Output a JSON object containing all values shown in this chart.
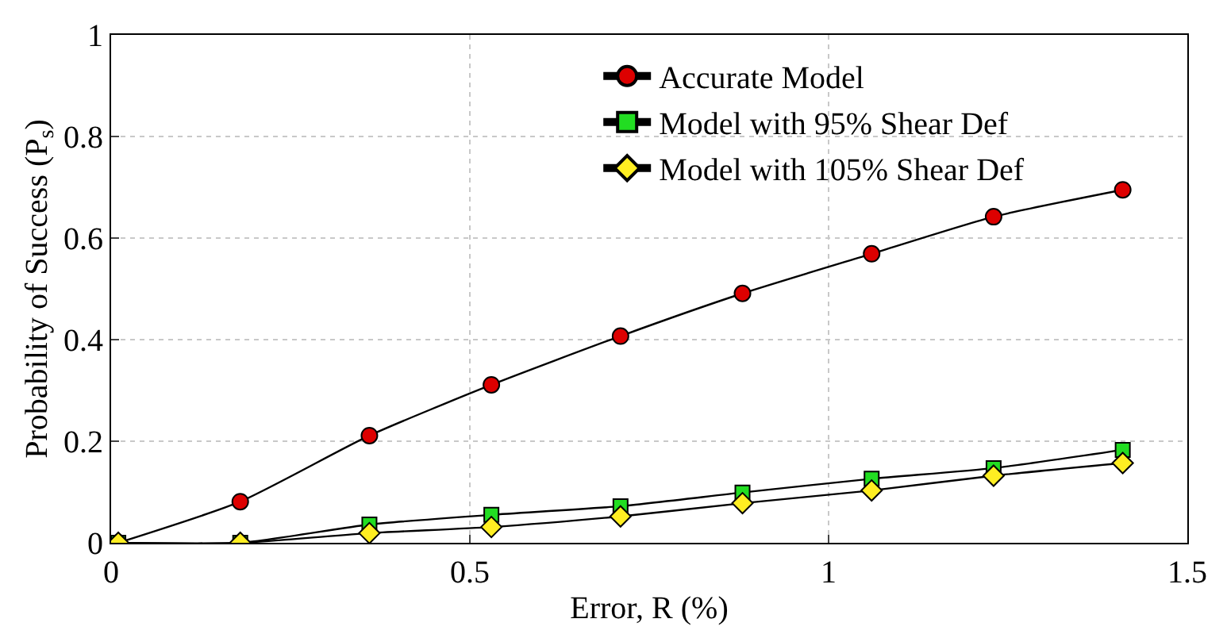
{
  "chart_data": {
    "type": "line",
    "xlabel": "Error, R (%)",
    "ylabel": "Probability of Success (P$_{s}$)",
    "x": [
      0.01,
      0.18,
      0.36,
      0.53,
      0.71,
      0.88,
      1.06,
      1.23,
      1.41
    ],
    "series": [
      {
        "name": "Accurate Model",
        "color": "#dd0000",
        "marker": "circle",
        "values": [
          0,
          0.081,
          0.211,
          0.311,
          0.407,
          0.491,
          0.569,
          0.642,
          0.695
        ]
      },
      {
        "name": "Model with 95% Shear Def",
        "color": "#22dd22",
        "marker": "square",
        "values": [
          0,
          0,
          0.036,
          0.055,
          0.072,
          0.099,
          0.126,
          0.147,
          0.183
        ]
      },
      {
        "name": "Model with 105% Shear Def",
        "color": "#ffee22",
        "marker": "diamond",
        "values": [
          0,
          0,
          0.019,
          0.031,
          0.052,
          0.078,
          0.103,
          0.132,
          0.157
        ]
      }
    ],
    "xlim": [
      0,
      1.5
    ],
    "xticks": [
      0,
      0.5,
      1,
      1.5
    ],
    "ylim": [
      0,
      1
    ],
    "yticks": [
      0,
      0.2,
      0.4,
      0.6,
      0.8,
      1
    ],
    "grid": true,
    "legend": "top right",
    "line_style": "solid"
  }
}
